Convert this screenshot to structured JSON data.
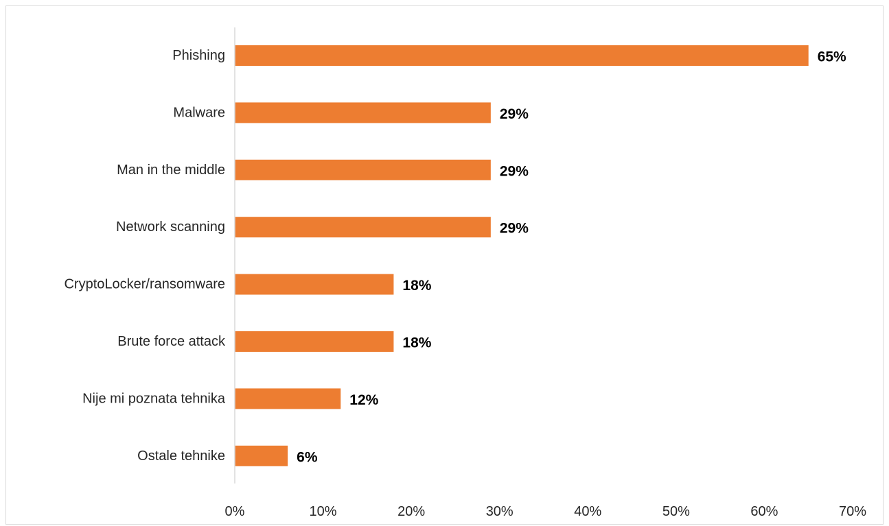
{
  "chart_data": {
    "type": "bar",
    "orientation": "horizontal",
    "title": "",
    "xlabel": "",
    "ylabel": "",
    "categories": [
      "Phishing",
      "Malware",
      "Man in the middle",
      "Network scanning",
      "CryptoLocker/ransomware",
      "Brute force attack",
      "Nije mi poznata tehnika",
      "Ostale tehnike"
    ],
    "values": [
      65,
      29,
      29,
      29,
      18,
      18,
      12,
      6
    ],
    "data_labels": [
      "65%",
      "29%",
      "29%",
      "29%",
      "18%",
      "18%",
      "12%",
      "6%"
    ],
    "xlim": [
      0,
      70
    ],
    "x_ticks": [
      0,
      10,
      20,
      30,
      40,
      50,
      60,
      70
    ],
    "x_tick_labels": [
      "0%",
      "10%",
      "20%",
      "30%",
      "40%",
      "50%",
      "60%",
      "70%"
    ],
    "grid": false,
    "legend": "none",
    "bar_color": "#ed7d31",
    "axis_color": "#d9d9d9"
  }
}
